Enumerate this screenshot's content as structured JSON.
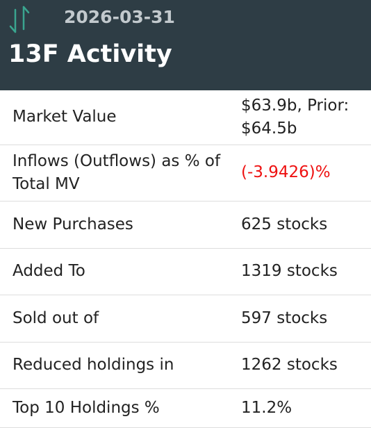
{
  "header": {
    "date": "2026-03-31",
    "title": "13F Activity"
  },
  "table": {
    "rows": [
      [
        "Market Value",
        "$63.9b, Prior: $64.5b"
      ],
      [
        "Inflows (Outflows) as % of Total MV",
        "(-3.9426)%"
      ],
      [
        "New Purchases",
        "625 stocks"
      ],
      [
        "Added To",
        "1319 stocks"
      ],
      [
        "Sold out of",
        "597 stocks"
      ],
      [
        "Reduced holdings in",
        "1262 stocks"
      ],
      [
        "Top 10 Holdings %",
        "11.2%"
      ]
    ]
  }
}
